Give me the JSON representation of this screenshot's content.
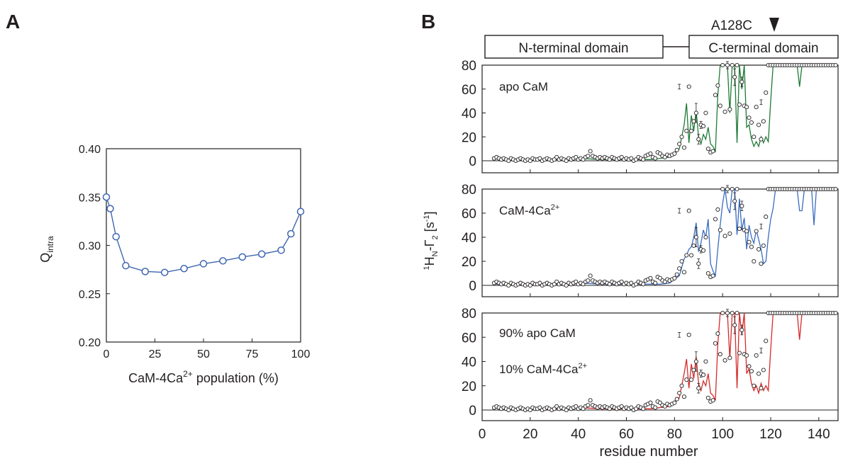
{
  "panel_labels": {
    "a": "A",
    "b": "B"
  },
  "colors": {
    "marker": "#3f66b0",
    "apo": "#1e7a36",
    "holo": "#3a6cc0",
    "mix": "#d62a2a",
    "axis": "#231f20"
  },
  "panel_a": {
    "ylabel_main": "Q",
    "ylabel_sub": "intra",
    "xlabel_main": "CaM-4Ca",
    "xlabel_sup": "2+",
    "xlabel_tail": " population (%)"
  },
  "panel_b": {
    "mutation_label": "A128C",
    "n_domain_label": "N-terminal domain",
    "c_domain_label": "C-terminal domain",
    "ylabel": {
      "pre_sup": "1",
      "h": "H",
      "n_sub": "N",
      "gamma": "-Γ",
      "two_sub": "2",
      "unit_open": " [s",
      "unit_sup": "-1",
      "unit_close": "]"
    },
    "xlabel": "residue number",
    "subpanels": [
      {
        "label_lines": [
          {
            "main": "apo CaM",
            "sup": ""
          }
        ]
      },
      {
        "label_lines": [
          {
            "main": "CaM-4Ca",
            "sup": "2+"
          }
        ]
      },
      {
        "label_lines": [
          {
            "main": "90% apo CaM",
            "sup": ""
          },
          {
            "main": "10% CaM-4Ca",
            "sup": "2+"
          }
        ]
      }
    ]
  },
  "chart_data": [
    {
      "type": "line",
      "panel": "A",
      "xlabel": "CaM-4Ca2+ population (%)",
      "ylabel": "Qintra",
      "xlim": [
        0,
        100
      ],
      "ylim": [
        0.2,
        0.4
      ],
      "x_ticks": [
        0,
        25,
        50,
        75,
        100
      ],
      "y_ticks": [
        0.2,
        0.25,
        0.3,
        0.35,
        0.4
      ],
      "y_tick_labels": [
        "0.20",
        "0.25",
        "0.30",
        "0.35",
        "0.40"
      ],
      "series": [
        {
          "x": [
            0,
            2,
            5,
            10,
            20,
            30,
            40,
            50,
            60,
            70,
            80,
            90,
            95,
            100
          ],
          "y": [
            0.35,
            0.338,
            0.309,
            0.279,
            0.273,
            0.272,
            0.276,
            0.281,
            0.284,
            0.288,
            0.291,
            0.295,
            0.312,
            0.335
          ]
        }
      ]
    },
    {
      "type": "line",
      "panel": "B",
      "xlabel": "residue number",
      "ylabel": "1HN-Γ2 [s-1]",
      "xlim": [
        0,
        148
      ],
      "ylim": [
        -8,
        80
      ],
      "x_ticks": [
        0,
        20,
        40,
        60,
        80,
        100,
        120,
        140
      ],
      "y_ticks": [
        0,
        20,
        40,
        60,
        80
      ],
      "experimental_points": {
        "x": [
          5,
          6,
          7,
          8,
          9,
          10,
          11,
          12,
          13,
          14,
          15,
          16,
          17,
          18,
          19,
          20,
          21,
          22,
          23,
          24,
          25,
          26,
          27,
          28,
          29,
          30,
          31,
          32,
          33,
          34,
          35,
          36,
          37,
          38,
          39,
          40,
          41,
          42,
          43,
          44,
          45,
          46,
          47,
          48,
          49,
          50,
          51,
          52,
          53,
          54,
          55,
          56,
          57,
          58,
          59,
          60,
          61,
          62,
          63,
          64,
          65,
          66,
          67,
          68,
          69,
          70,
          71,
          72,
          73,
          74,
          75,
          76,
          77,
          78,
          79,
          80,
          81,
          82,
          83,
          84,
          85,
          86,
          87,
          88,
          89,
          90,
          91,
          92,
          93,
          94,
          95,
          96,
          97,
          98,
          99,
          100,
          101,
          102,
          103,
          104,
          105,
          106,
          107,
          108,
          109,
          110,
          111,
          112,
          113,
          114,
          115,
          116,
          117,
          118,
          119,
          120,
          121,
          122,
          123,
          124,
          125,
          126,
          127,
          128,
          129,
          130,
          131,
          132,
          133,
          134,
          135,
          136,
          137,
          138,
          139,
          140,
          141,
          142,
          143,
          144,
          145,
          146,
          147
        ],
        "y": [
          2,
          3,
          2,
          1,
          2,
          1,
          0,
          2,
          1,
          0,
          1,
          2,
          1,
          0,
          1,
          0,
          2,
          1,
          1,
          2,
          0,
          1,
          2,
          1,
          0,
          1,
          3,
          1,
          2,
          1,
          0,
          2,
          1,
          2,
          3,
          1,
          2,
          1,
          3,
          4,
          8,
          4,
          3,
          2,
          3,
          2,
          3,
          2,
          1,
          3,
          2,
          1,
          2,
          3,
          1,
          2,
          1,
          2,
          0,
          1,
          3,
          2,
          1,
          4,
          5,
          6,
          3,
          2,
          7,
          6,
          4,
          3,
          5,
          4,
          5,
          6,
          9,
          14,
          20,
          11,
          25,
          62,
          25,
          33,
          40,
          18,
          30,
          29,
          40,
          10,
          7,
          8,
          55,
          63,
          46,
          80,
          41,
          80,
          43,
          80,
          70,
          80,
          47,
          66,
          46,
          45,
          36,
          32,
          20,
          45,
          30,
          18,
          33,
          57,
          80,
          80,
          80,
          80,
          80,
          80,
          80,
          80,
          80,
          80,
          80,
          80,
          80,
          80,
          80,
          80,
          80,
          80,
          80,
          80,
          80,
          80,
          80,
          80,
          80,
          80,
          80,
          80,
          80
        ]
      },
      "series": [
        {
          "name": "apo CaM",
          "x": [
            5,
            10,
            20,
            30,
            40,
            50,
            60,
            70,
            74,
            78,
            80,
            82,
            84,
            85,
            86,
            87,
            88,
            89,
            90,
            91,
            92,
            93,
            94,
            95,
            96,
            97,
            98,
            99,
            100,
            101,
            102,
            103,
            104,
            105,
            106,
            107,
            108,
            109,
            110,
            111,
            112,
            113,
            114,
            115,
            116,
            117,
            118,
            119,
            120,
            121,
            122,
            123,
            124,
            125,
            126,
            127,
            128,
            129,
            130,
            131,
            132,
            133,
            134,
            135,
            136,
            137,
            138,
            139,
            140,
            141,
            142,
            143,
            144,
            145,
            146,
            147
          ],
          "y": [
            2,
            1,
            1,
            1,
            2,
            1,
            1,
            1,
            2,
            3,
            6,
            10,
            30,
            48,
            15,
            38,
            25,
            42,
            20,
            14,
            22,
            18,
            28,
            14,
            12,
            8,
            55,
            80,
            80,
            80,
            80,
            40,
            80,
            80,
            15,
            80,
            60,
            80,
            28,
            30,
            18,
            12,
            16,
            12,
            20,
            15,
            20,
            16,
            50,
            80,
            80,
            80,
            80,
            80,
            80,
            80,
            80,
            80,
            80,
            80,
            62,
            80,
            80,
            80,
            80,
            80,
            80,
            80,
            80,
            80,
            80,
            80,
            80,
            80,
            80,
            80
          ]
        },
        {
          "name": "CaM-4Ca2+",
          "x": [
            5,
            10,
            20,
            30,
            40,
            50,
            60,
            70,
            74,
            78,
            80,
            82,
            84,
            85,
            86,
            87,
            88,
            89,
            90,
            91,
            92,
            93,
            94,
            95,
            96,
            97,
            98,
            99,
            100,
            101,
            102,
            103,
            104,
            105,
            106,
            107,
            108,
            109,
            110,
            111,
            112,
            113,
            114,
            115,
            116,
            117,
            118,
            119,
            120,
            121,
            122,
            123,
            124,
            125,
            126,
            127,
            128,
            129,
            130,
            131,
            132,
            133,
            134,
            135,
            136,
            137,
            138,
            139,
            140,
            141,
            142,
            143,
            144,
            145,
            146,
            147
          ],
          "y": [
            1,
            1,
            1,
            1,
            2,
            1,
            1,
            1,
            1,
            2,
            5,
            8,
            22,
            25,
            30,
            32,
            40,
            52,
            28,
            35,
            46,
            40,
            55,
            18,
            12,
            8,
            30,
            50,
            68,
            80,
            65,
            60,
            80,
            80,
            42,
            72,
            46,
            56,
            30,
            50,
            40,
            35,
            46,
            38,
            30,
            18,
            20,
            40,
            55,
            64,
            80,
            80,
            80,
            80,
            80,
            80,
            80,
            80,
            80,
            80,
            62,
            62,
            80,
            80,
            80,
            80,
            50,
            80,
            80,
            80,
            80,
            80,
            80,
            80,
            80,
            80
          ]
        },
        {
          "name": "90% apo CaM / 10% CaM-4Ca2+",
          "x": [
            5,
            10,
            20,
            30,
            40,
            50,
            60,
            70,
            74,
            78,
            80,
            82,
            84,
            85,
            86,
            87,
            88,
            89,
            90,
            91,
            92,
            93,
            94,
            95,
            96,
            97,
            98,
            99,
            100,
            101,
            102,
            103,
            104,
            105,
            106,
            107,
            108,
            109,
            110,
            111,
            112,
            113,
            114,
            115,
            116,
            117,
            118,
            119,
            120,
            121,
            122,
            123,
            124,
            125,
            126,
            127,
            128,
            129,
            130,
            131,
            132,
            133,
            134,
            135,
            136,
            137,
            138,
            139,
            140,
            141,
            142,
            143,
            144,
            145,
            146,
            147
          ],
          "y": [
            2,
            1,
            1,
            1,
            2,
            1,
            1,
            1,
            2,
            3,
            6,
            10,
            30,
            42,
            18,
            38,
            26,
            44,
            22,
            16,
            24,
            20,
            30,
            14,
            12,
            8,
            54,
            80,
            80,
            80,
            80,
            42,
            80,
            80,
            18,
            80,
            62,
            80,
            30,
            34,
            22,
            16,
            20,
            14,
            22,
            16,
            20,
            16,
            50,
            80,
            80,
            80,
            80,
            80,
            80,
            80,
            80,
            80,
            80,
            80,
            58,
            80,
            80,
            80,
            80,
            80,
            80,
            80,
            80,
            80,
            80,
            80,
            80,
            80,
            80,
            80
          ]
        }
      ],
      "error_bars": [
        {
          "x": 82,
          "y": 62,
          "err": 2
        },
        {
          "x": 89,
          "y": 40,
          "err": 8
        },
        {
          "x": 90,
          "y": 18,
          "err": 4
        },
        {
          "x": 91,
          "y": 30,
          "err": 3
        },
        {
          "x": 102,
          "y": 80,
          "err": 3
        },
        {
          "x": 105,
          "y": 70,
          "err": 7
        },
        {
          "x": 108,
          "y": 66,
          "err": 4
        },
        {
          "x": 116,
          "y": 49,
          "err": 2
        }
      ]
    }
  ]
}
